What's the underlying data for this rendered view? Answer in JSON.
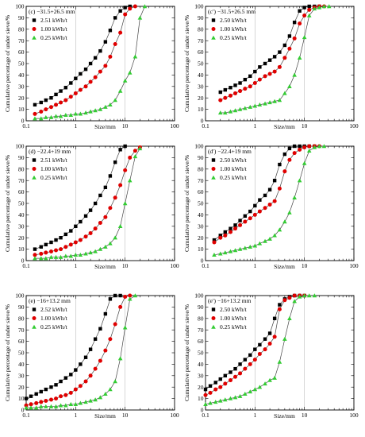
{
  "colors": {
    "s1": "#000000",
    "s2": "#e00000",
    "s3": "#33cc33",
    "axis": "#000000",
    "line": "#444444"
  },
  "chart_data": [
    {
      "type": "line",
      "panel_label": "(c) −31.5+26.5 mm",
      "xlabel": "Size/mm",
      "ylabel": "Cumulative percentage of under sieve/%",
      "xscale": "log",
      "xlim": [
        0.1,
        100
      ],
      "ylim": [
        0,
        100
      ],
      "xticks": [
        "0.1",
        "1",
        "10",
        "100"
      ],
      "yticks": [
        "0",
        "10",
        "20",
        "30",
        "40",
        "50",
        "60",
        "70",
        "80",
        "90",
        "100"
      ],
      "grid": false,
      "legend_position": "top-left",
      "series": [
        {
          "name": "2.51 kWh/t",
          "x": [
            0.15,
            0.2,
            0.25,
            0.32,
            0.4,
            0.5,
            0.63,
            0.8,
            1.0,
            1.25,
            1.6,
            2.0,
            2.5,
            3.15,
            4.0,
            5.0,
            6.3,
            8.0,
            10,
            12.5
          ],
          "y": [
            14,
            16,
            18,
            20,
            23,
            26,
            29,
            33,
            37,
            41,
            45,
            50,
            55,
            61,
            69,
            79,
            90,
            96,
            99,
            100
          ]
        },
        {
          "name": "1.00 kWh/t",
          "x": [
            0.15,
            0.2,
            0.25,
            0.32,
            0.4,
            0.5,
            0.63,
            0.8,
            1.0,
            1.25,
            1.6,
            2.0,
            2.5,
            3.15,
            4.0,
            5.0,
            6.3,
            8.0,
            10,
            12.5,
            16
          ],
          "y": [
            6,
            8,
            10,
            12,
            14,
            16,
            18,
            21,
            24,
            27,
            30,
            34,
            38,
            43,
            48,
            56,
            67,
            77,
            93,
            98,
            100
          ]
        },
        {
          "name": "0.25 kWh/t",
          "x": [
            0.15,
            0.2,
            0.25,
            0.32,
            0.4,
            0.5,
            0.63,
            0.8,
            1.0,
            1.25,
            1.6,
            2.0,
            2.5,
            3.15,
            4.0,
            5.0,
            6.3,
            8.0,
            10,
            12.5,
            16,
            20,
            25
          ],
          "y": [
            2,
            2,
            3,
            3,
            4,
            4,
            5,
            5,
            6,
            6,
            7,
            8,
            9,
            10,
            12,
            14,
            18,
            26,
            35,
            42,
            56,
            90,
            100
          ]
        }
      ]
    },
    {
      "type": "line",
      "panel_label": "(c′) −31.5+26.5 mm",
      "xlabel": "Size/mm",
      "ylabel": "Cumulative percentage of under sieve/%",
      "xscale": "log",
      "xlim": [
        0.1,
        100
      ],
      "ylim": [
        0,
        100
      ],
      "xticks": [
        "0.1",
        "1",
        "10",
        "100"
      ],
      "yticks": [
        "0",
        "10",
        "20",
        "30",
        "40",
        "50",
        "60",
        "70",
        "80",
        "90",
        "100"
      ],
      "grid": false,
      "legend_position": "top-left",
      "series": [
        {
          "name": "2.50 kWh/t",
          "x": [
            0.2,
            0.25,
            0.32,
            0.4,
            0.5,
            0.63,
            0.8,
            1.0,
            1.25,
            1.6,
            2.0,
            2.5,
            3.15,
            4.0,
            5.0,
            6.3,
            8.0,
            10,
            12.5,
            16,
            20
          ],
          "y": [
            25,
            27,
            29,
            31,
            33,
            36,
            39,
            43,
            47,
            50,
            53,
            56,
            60,
            66,
            74,
            86,
            96,
            99,
            100,
            100,
            100
          ]
        },
        {
          "name": "1.00 kWh/t",
          "x": [
            0.2,
            0.25,
            0.32,
            0.4,
            0.5,
            0.63,
            0.8,
            1.0,
            1.25,
            1.6,
            2.0,
            2.5,
            3.15,
            4.0,
            5.0,
            6.3,
            8.0,
            10,
            12.5,
            16,
            20,
            25
          ],
          "y": [
            18,
            20,
            22,
            24,
            26,
            28,
            30,
            33,
            36,
            39,
            41,
            43,
            47,
            55,
            63,
            72,
            85,
            92,
            97,
            99,
            100,
            100
          ]
        },
        {
          "name": "0.25 kWh/t",
          "x": [
            0.2,
            0.25,
            0.32,
            0.4,
            0.5,
            0.63,
            0.8,
            1.0,
            1.25,
            1.6,
            2.0,
            2.5,
            3.15,
            4.0,
            5.0,
            6.3,
            8.0,
            10,
            12.5,
            16,
            20,
            25,
            31.5
          ],
          "y": [
            7,
            7,
            8,
            9,
            10,
            11,
            12,
            13,
            14,
            15,
            16,
            17,
            18,
            24,
            30,
            40,
            55,
            73,
            92,
            98,
            99,
            100,
            100
          ]
        }
      ]
    },
    {
      "type": "line",
      "panel_label": "(d) −22.4+19 mm",
      "xlabel": "Size/mm",
      "ylabel": "Cumulative percentage of under sieve/%",
      "xscale": "log",
      "xlim": [
        0.1,
        100
      ],
      "ylim": [
        0,
        100
      ],
      "xticks": [
        "0.1",
        "1",
        "10",
        "100"
      ],
      "yticks": [
        "0",
        "10",
        "20",
        "30",
        "40",
        "50",
        "60",
        "70",
        "80",
        "90",
        "100"
      ],
      "grid": false,
      "legend_position": "top-left",
      "series": [
        {
          "name": "2.51 kWh/t",
          "x": [
            0.15,
            0.2,
            0.25,
            0.32,
            0.4,
            0.5,
            0.63,
            0.8,
            1.0,
            1.25,
            1.6,
            2.0,
            2.5,
            3.15,
            4.0,
            5.0,
            6.3,
            8.0,
            10
          ],
          "y": [
            10,
            12,
            14,
            16,
            18,
            20,
            23,
            26,
            30,
            34,
            39,
            44,
            50,
            57,
            64,
            74,
            86,
            97,
            100
          ]
        },
        {
          "name": "1.00 kWh/t",
          "x": [
            0.15,
            0.2,
            0.25,
            0.32,
            0.4,
            0.5,
            0.63,
            0.8,
            1.0,
            1.25,
            1.6,
            2.0,
            2.5,
            3.15,
            4.0,
            5.0,
            6.3,
            8.0,
            10,
            12.5,
            16,
            20
          ],
          "y": [
            5,
            6,
            7,
            8,
            9,
            10,
            12,
            14,
            16,
            18,
            21,
            24,
            28,
            33,
            38,
            46,
            55,
            66,
            79,
            90,
            96,
            99
          ]
        },
        {
          "name": "0.25 kWh/t",
          "x": [
            0.15,
            0.2,
            0.25,
            0.32,
            0.4,
            0.5,
            0.63,
            0.8,
            1.0,
            1.25,
            1.6,
            2.0,
            2.5,
            3.15,
            4.0,
            5.0,
            6.3,
            8.0,
            10,
            12.5,
            16,
            20
          ],
          "y": [
            2,
            2,
            2,
            3,
            3,
            3,
            4,
            4,
            5,
            5,
            6,
            7,
            8,
            10,
            12,
            15,
            20,
            30,
            50,
            70,
            91,
            98
          ]
        }
      ]
    },
    {
      "type": "line",
      "panel_label": "(d′) −22.4+19 mm",
      "xlabel": "Size/mm",
      "ylabel": "Cumulative percentage of under sieve/%",
      "xscale": "log",
      "xlim": [
        0.1,
        100
      ],
      "ylim": [
        0,
        100
      ],
      "xticks": [
        "0.1",
        "1",
        "10",
        "100"
      ],
      "yticks": [
        "0",
        "10",
        "20",
        "30",
        "40",
        "50",
        "60",
        "70",
        "80",
        "90",
        "100"
      ],
      "grid": false,
      "legend_position": "top-left",
      "series": [
        {
          "name": "2.50 kWh/t",
          "x": [
            0.15,
            0.2,
            0.25,
            0.32,
            0.4,
            0.5,
            0.63,
            0.8,
            1.0,
            1.25,
            1.6,
            2.0,
            2.5,
            3.15,
            4.0,
            5.0,
            6.3,
            8.0,
            10,
            12.5,
            16
          ],
          "y": [
            18,
            22,
            25,
            28,
            31,
            35,
            39,
            43,
            48,
            53,
            57,
            62,
            70,
            84,
            93,
            98,
            100,
            100,
            100,
            100,
            100
          ]
        },
        {
          "name": "1.00 kWh/t",
          "x": [
            0.15,
            0.2,
            0.25,
            0.32,
            0.4,
            0.5,
            0.63,
            0.8,
            1.0,
            1.25,
            1.6,
            2.0,
            2.5,
            3.15,
            4.0,
            5.0,
            6.3,
            8.0,
            10,
            12.5,
            16,
            20
          ],
          "y": [
            16,
            20,
            22,
            25,
            28,
            31,
            34,
            37,
            40,
            43,
            46,
            49,
            52,
            63,
            78,
            88,
            94,
            97,
            99,
            100,
            100,
            100
          ]
        },
        {
          "name": "0.25 kWh/t",
          "x": [
            0.15,
            0.2,
            0.25,
            0.32,
            0.4,
            0.5,
            0.63,
            0.8,
            1.0,
            1.25,
            1.6,
            2.0,
            2.5,
            3.15,
            4.0,
            5.0,
            6.3,
            8.0,
            10,
            12.5,
            16,
            20,
            25
          ],
          "y": [
            5,
            6,
            7,
            8,
            9,
            10,
            11,
            12,
            13,
            15,
            17,
            19,
            22,
            27,
            34,
            42,
            55,
            70,
            85,
            96,
            99,
            100,
            100
          ]
        }
      ]
    },
    {
      "type": "line",
      "panel_label": "(e) −16+13.2 mm",
      "xlabel": "Size/mm",
      "ylabel": "Cumulative percentage of under sieve/%",
      "xscale": "log",
      "xlim": [
        0.1,
        100
      ],
      "ylim": [
        0,
        100
      ],
      "xticks": [
        "0.1",
        "1",
        "10",
        "100"
      ],
      "yticks": [
        "0",
        "10",
        "20",
        "30",
        "40",
        "50",
        "60",
        "70",
        "80",
        "90",
        "100"
      ],
      "grid": false,
      "legend_position": "top-left",
      "series": [
        {
          "name": "2.52 kWh/t",
          "x": [
            0.1,
            0.125,
            0.16,
            0.2,
            0.25,
            0.32,
            0.4,
            0.5,
            0.63,
            0.8,
            1.0,
            1.25,
            1.6,
            2.0,
            2.5,
            3.15,
            4.0,
            5.0,
            6.3,
            8.0
          ],
          "y": [
            10,
            12,
            14,
            16,
            18,
            20,
            22,
            25,
            28,
            31,
            35,
            40,
            46,
            53,
            62,
            71,
            84,
            97,
            100,
            100
          ]
        },
        {
          "name": "1.00 kWh/t",
          "x": [
            0.1,
            0.125,
            0.16,
            0.2,
            0.25,
            0.32,
            0.4,
            0.5,
            0.63,
            0.8,
            1.0,
            1.25,
            1.6,
            2.0,
            2.5,
            3.15,
            4.0,
            5.0,
            6.3,
            8.0,
            10,
            12.5
          ],
          "y": [
            4,
            5,
            6,
            7,
            8,
            9,
            10,
            12,
            13,
            15,
            18,
            21,
            25,
            30,
            36,
            43,
            52,
            62,
            75,
            90,
            99,
            100
          ]
        },
        {
          "name": "0.25 kWh/t",
          "x": [
            0.1,
            0.125,
            0.16,
            0.2,
            0.25,
            0.32,
            0.4,
            0.5,
            0.63,
            0.8,
            1.0,
            1.25,
            1.6,
            2.0,
            2.5,
            3.15,
            4.0,
            5.0,
            6.3,
            8.0,
            10,
            12.5,
            16
          ],
          "y": [
            2,
            2,
            2,
            3,
            3,
            3,
            3,
            4,
            4,
            5,
            5,
            6,
            7,
            8,
            9,
            11,
            14,
            18,
            25,
            45,
            72,
            97,
            100
          ]
        }
      ]
    },
    {
      "type": "line",
      "panel_label": "(e′) −16+13.2 mm",
      "xlabel": "Size/mm",
      "ylabel": "Cumulative percentage of under sieve/%",
      "xscale": "log",
      "xlim": [
        0.1,
        100
      ],
      "ylim": [
        0,
        100
      ],
      "xticks": [
        "0.1",
        "1",
        "10",
        "100"
      ],
      "yticks": [
        "0",
        "10",
        "20",
        "30",
        "40",
        "50",
        "60",
        "70",
        "80",
        "90",
        "100"
      ],
      "grid": false,
      "legend_position": "top-left",
      "series": [
        {
          "name": "2.50 kWh/t",
          "x": [
            0.1,
            0.125,
            0.16,
            0.2,
            0.25,
            0.32,
            0.4,
            0.5,
            0.63,
            0.8,
            1.0,
            1.25,
            1.6,
            2.0,
            2.5,
            3.15,
            4.0,
            5.0,
            6.3,
            8.0,
            10
          ],
          "y": [
            18,
            21,
            24,
            27,
            30,
            33,
            36,
            40,
            44,
            48,
            53,
            57,
            62,
            67,
            80,
            92,
            97,
            99,
            100,
            100,
            100
          ]
        },
        {
          "name": "1.00 kWh/t",
          "x": [
            0.1,
            0.125,
            0.16,
            0.2,
            0.25,
            0.32,
            0.4,
            0.5,
            0.63,
            0.8,
            1.0,
            1.25,
            1.6,
            2.0,
            2.5,
            3.15,
            4.0,
            5.0,
            6.3,
            8.0,
            10
          ],
          "y": [
            13,
            15,
            18,
            20,
            23,
            26,
            29,
            32,
            36,
            40,
            44,
            49,
            53,
            58,
            64,
            88,
            96,
            98,
            100,
            100,
            100
          ]
        },
        {
          "name": "0.25 kWh/t",
          "x": [
            0.1,
            0.125,
            0.16,
            0.2,
            0.25,
            0.32,
            0.4,
            0.5,
            0.63,
            0.8,
            1.0,
            1.25,
            1.6,
            2.0,
            2.5,
            3.15,
            4.0,
            5.0,
            6.3,
            8.0,
            10,
            12.5,
            16
          ],
          "y": [
            5,
            6,
            7,
            8,
            9,
            10,
            11,
            12,
            14,
            16,
            18,
            20,
            23,
            26,
            28,
            42,
            62,
            80,
            95,
            99,
            100,
            100,
            100
          ]
        }
      ]
    }
  ]
}
